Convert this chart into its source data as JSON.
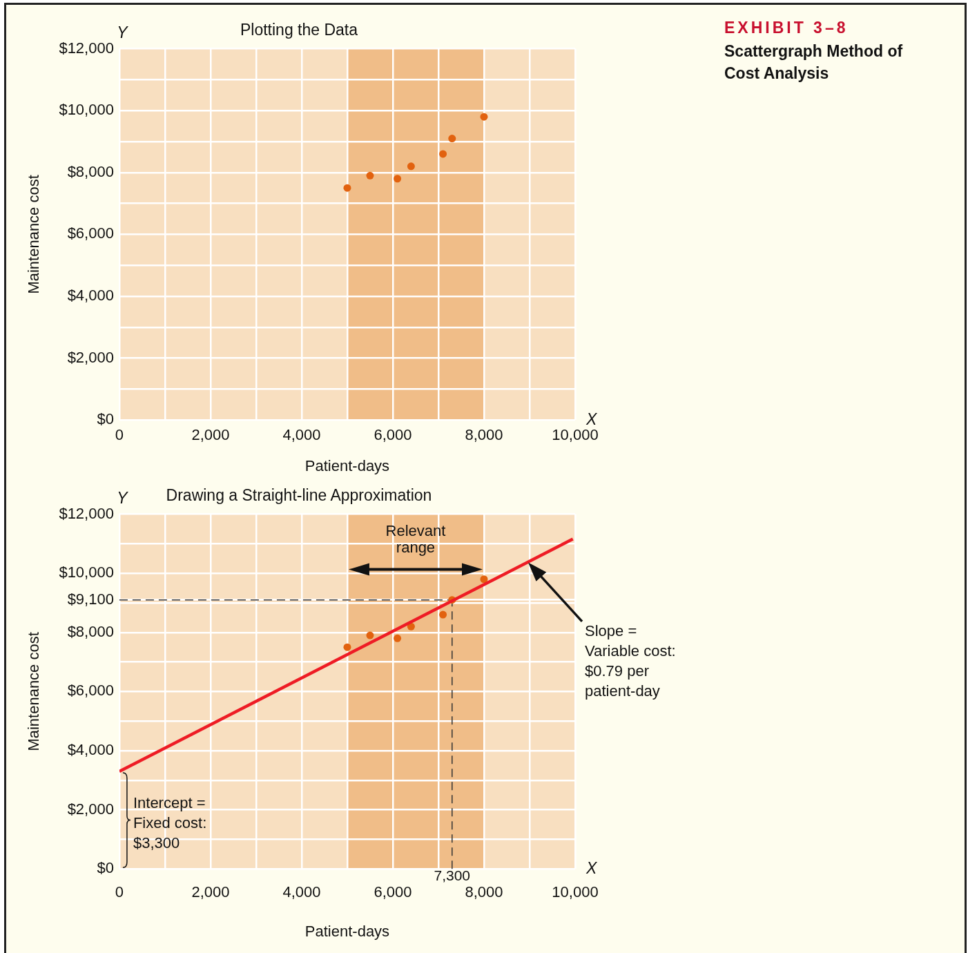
{
  "chart_data": [
    {
      "type": "scatter",
      "title": "Plotting the Data",
      "xlabel": "Patient-days",
      "ylabel": "Maintenance cost",
      "x": [
        5000,
        5500,
        6100,
        6400,
        7100,
        7300,
        8000
      ],
      "values": [
        7500,
        7900,
        7800,
        8200,
        8600,
        9100,
        9800
      ],
      "color": "#e2620f",
      "marker": "circle",
      "grid": true,
      "xlim": [
        0,
        10000
      ],
      "ylim": [
        0,
        12000
      ],
      "xticks": [
        0,
        {
          "value": 1000,
          "label": null
        },
        {
          "value": 2000,
          "label": "2,000"
        },
        {
          "value": 3000,
          "label": null
        },
        {
          "value": 4000,
          "label": "4,000"
        },
        {
          "value": 5000,
          "label": null
        },
        {
          "value": 6000,
          "label": "6,000"
        },
        {
          "value": 7000,
          "label": null
        },
        {
          "value": 8000,
          "label": "8,000"
        },
        {
          "value": 9000,
          "label": null
        },
        {
          "value": 10000,
          "label": "10,000"
        }
      ],
      "yticks": [
        {
          "value": 0,
          "label": "$0"
        },
        {
          "value": 1000,
          "label": null
        },
        {
          "value": 2000,
          "label": "$2,000"
        },
        {
          "value": 3000,
          "label": null
        },
        {
          "value": 4000,
          "label": "$4,000"
        },
        {
          "value": 5000,
          "label": null
        },
        {
          "value": 6000,
          "label": "$6,000"
        },
        {
          "value": 7000,
          "label": null
        },
        {
          "value": 8000,
          "label": "$8,000"
        },
        {
          "value": 9000,
          "label": null
        },
        {
          "value": 10000,
          "label": "$10,000"
        },
        {
          "value": 11000,
          "label": null
        },
        {
          "value": 12000,
          "label": "$12,000"
        }
      ],
      "bands": [
        {
          "axis": "x",
          "from": 5000,
          "to": 8000,
          "color": "#f0bd88"
        }
      ],
      "annotations": [
        "EXHIBIT 3–8",
        "Scattergraph Method of Cost Analysis",
        "Y",
        "X"
      ]
    },
    {
      "type": "scatter",
      "title": "Drawing a Straight-line Approximation",
      "xlabel": "Patient-days",
      "ylabel": "Maintenance cost",
      "series": [
        {
          "type": "scatter",
          "color": "#e2620f",
          "x": [
            5000,
            5500,
            6100,
            6400,
            7100,
            7300,
            8000
          ],
          "values": [
            7500,
            7900,
            7800,
            8200,
            8600,
            9100,
            9800
          ]
        },
        {
          "type": "line",
          "color": "#ee1c25",
          "marker": "none",
          "x": [
            0,
            9950
          ],
          "values": [
            3300,
            11160
          ]
        }
      ],
      "marker": "circle",
      "grid": true,
      "xlim": [
        0,
        10000
      ],
      "ylim": [
        0,
        12000
      ],
      "xticks": [
        0,
        {
          "value": 1000,
          "label": null
        },
        {
          "value": 2000,
          "label": "2,000"
        },
        {
          "value": 3000,
          "label": null
        },
        {
          "value": 4000,
          "label": "4,000"
        },
        {
          "value": 5000,
          "label": null
        },
        {
          "value": 6000,
          "label": "6,000"
        },
        {
          "value": 7000,
          "label": null
        },
        {
          "value": 8000,
          "label": "8,000"
        },
        {
          "value": 9000,
          "label": null
        },
        {
          "value": 10000,
          "label": "10,000"
        }
      ],
      "yticks": [
        {
          "value": 0,
          "label": "$0"
        },
        {
          "value": 1000,
          "label": null
        },
        {
          "value": 2000,
          "label": "$2,000"
        },
        {
          "value": 3000,
          "label": null
        },
        {
          "value": 4000,
          "label": "$4,000"
        },
        {
          "value": 5000,
          "label": null
        },
        {
          "value": 6000,
          "label": "$6,000"
        },
        {
          "value": 7000,
          "label": null
        },
        {
          "value": 8000,
          "label": "$8,000"
        },
        {
          "value": 9000,
          "label": null
        },
        {
          "value": 9100,
          "label": "$9,100"
        },
        {
          "value": 10000,
          "label": "$10,000"
        },
        {
          "value": 11000,
          "label": null
        },
        {
          "value": 12000,
          "label": "$12,000"
        }
      ],
      "bands": [
        {
          "axis": "x",
          "from": 5000,
          "to": 8000,
          "color": "#f0bd88",
          "label": "Relevant range"
        }
      ],
      "ref_lines": [
        {
          "axis": "y",
          "value": 9100,
          "color": "#333333",
          "line_style": "dashed"
        },
        {
          "axis": "x",
          "value": 7300,
          "color": "#333333",
          "line_style": "dashed",
          "label": "7,300"
        }
      ],
      "annotations": [
        "Y",
        "X",
        "Slope = Variable cost: $0.79 per patient-day",
        {
          "text": "Intercept = Fixed cost: $3,300",
          "x": 0,
          "y": 3300
        }
      ]
    }
  ]
}
